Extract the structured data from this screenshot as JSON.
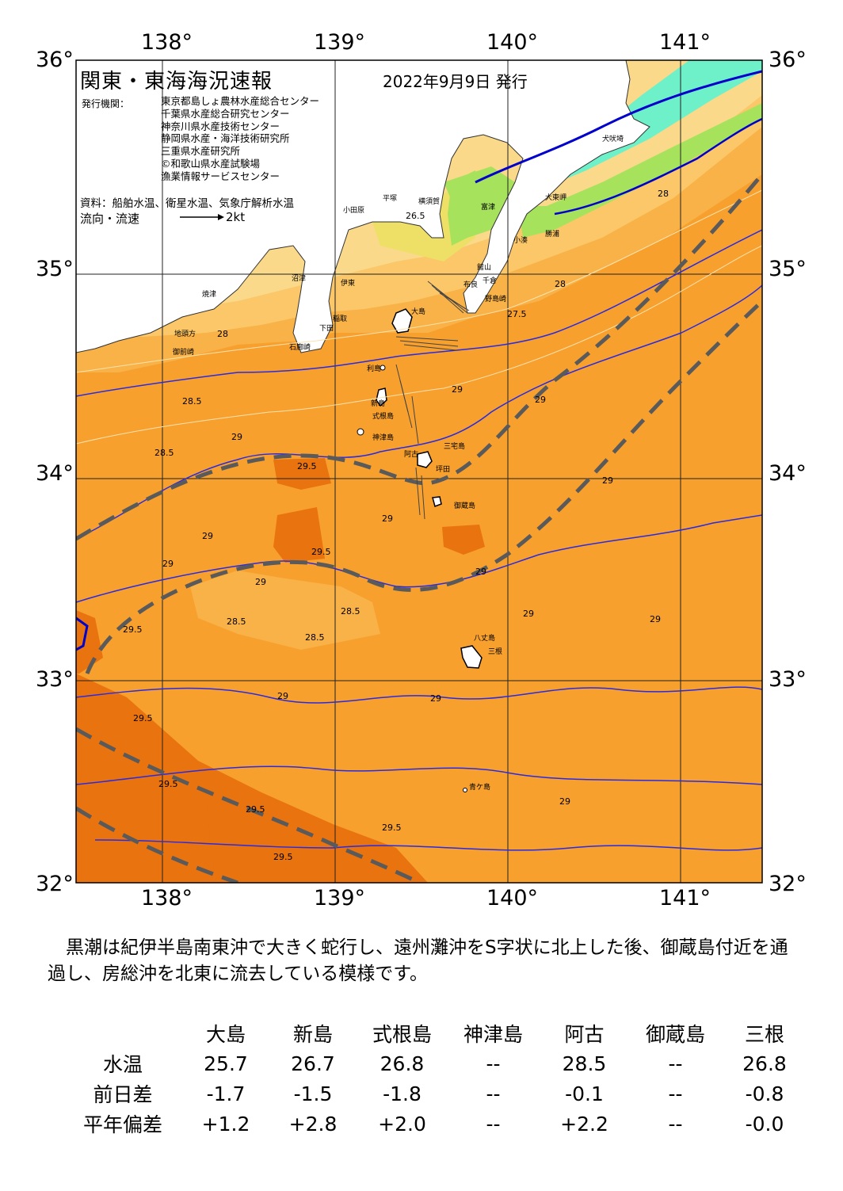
{
  "map": {
    "title": "関東・東海海況速報",
    "date": "2022年9月9日 発行",
    "issuer_label": "発行機関：",
    "issuers": [
      "東京都島しょ農林水産総合センター",
      "千葉県水産総合研究センター",
      "神奈川県水産技術センター",
      "静岡県水産・海洋技術研究所",
      "三重県水産研究所",
      "©和歌山県水産試験場",
      "漁業情報サービスセンター"
    ],
    "source": "資料：船舶水温、衛星水温、気象庁解析水温",
    "flow_label": "流向・流速",
    "flow_scale": "2kt",
    "lon_ticks": [
      "138°",
      "139°",
      "140°",
      "141°"
    ],
    "lat_ticks": [
      "36°",
      "35°",
      "34°",
      "33°",
      "32°"
    ],
    "contour_labels": [
      "29.5",
      "29.5",
      "28.5",
      "28.5",
      "28.5",
      "29",
      "29",
      "29",
      "29",
      "29",
      "29",
      "29",
      "28.5",
      "28.5",
      "29",
      "29",
      "29",
      "29",
      "29",
      "29",
      "29",
      "28",
      "28",
      "27.5",
      "26.5",
      "28",
      "29.5",
      "29.5",
      "29.5",
      "29.5",
      "29.5",
      "29.5"
    ],
    "place_labels": [
      "大島",
      "利島",
      "新島",
      "式根島",
      "神津島",
      "三宅島",
      "阿古",
      "坪田",
      "御蔵島",
      "八丈島",
      "三根",
      "青ケ島",
      "平塚",
      "横須賀",
      "富津",
      "館山",
      "千倉",
      "布良",
      "野島崎",
      "小田原",
      "沼津",
      "伊東",
      "稲取",
      "下田",
      "石廊崎",
      "焼津",
      "御前崎",
      "地頭方",
      "勝浦",
      "大東岬",
      "犬吠埼",
      "小湊"
    ]
  },
  "description": "　黒潮は紀伊半島南東沖で大きく蛇行し、遠州灘沖をS字状に北上した後、御蔵島付近を通過し、房総沖を北東に流去している模様です。",
  "table": {
    "columns": [
      "大島",
      "新島",
      "式根島",
      "神津島",
      "阿古",
      "御蔵島",
      "三根"
    ],
    "rows": [
      {
        "label": "水温",
        "values": [
          "25.7",
          "26.7",
          "26.8",
          "--",
          "28.5",
          "--",
          "26.8"
        ]
      },
      {
        "label": "前日差",
        "values": [
          "-1.7",
          "-1.5",
          "-1.8",
          "--",
          "-0.1",
          "--",
          "-0.8"
        ]
      },
      {
        "label": "平年偏差",
        "values": [
          "+1.2",
          "+2.8",
          "+2.0",
          "--",
          "+2.2",
          "--",
          "-0.0"
        ]
      }
    ]
  }
}
